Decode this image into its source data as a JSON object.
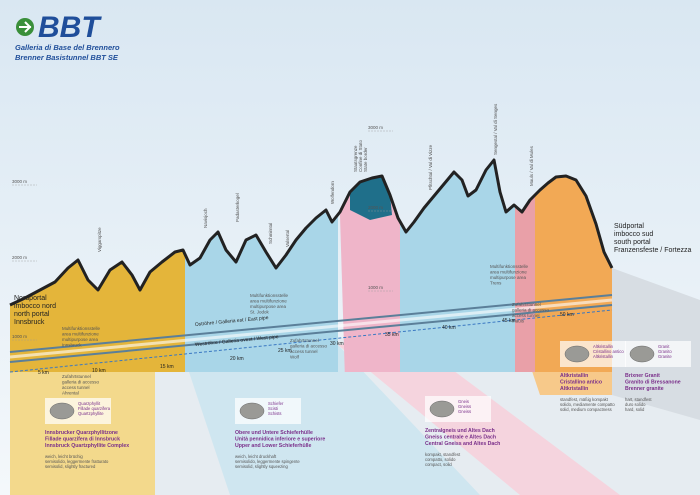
{
  "header": {
    "logo": "BBT",
    "lines": [
      "Galleria di Base del Brennero",
      "Brenner Basistunnel BBT SE"
    ]
  },
  "elevations": [
    "3000 m",
    "2000 m",
    "1000 m",
    "3000 m",
    "2000 m",
    "1000 m"
  ],
  "portals": {
    "north": [
      "Nordportal",
      "imbocco nord",
      "north portal",
      "Innsbruck"
    ],
    "south": [
      "Südportal",
      "imbocco sud",
      "south portal",
      "Franzensfeste / Fortezza"
    ]
  },
  "peaks": [
    [
      "Viggarspitze"
    ],
    [
      "Navisjoch"
    ],
    [
      "Padasterkogel"
    ],
    [
      "Schmirntal"
    ],
    [
      "Valsertal"
    ],
    [
      "Wolfendorn"
    ],
    [
      "Staatsgrenze",
      "Confine di Stato",
      "State border"
    ],
    [
      "Pfitschtal / Val di Vizze"
    ],
    [
      "Sengestal / Val di Senges"
    ],
    [
      "Mauls / Val di Mules"
    ]
  ],
  "km": [
    "5 km",
    "10 km",
    "15 km",
    "20 km",
    "25 km",
    "30 km",
    "35 km",
    "40 km",
    "45 km",
    "50 km"
  ],
  "tubes": [
    "Oströhre / Galleria est / East pipe",
    "Weströhre / Galleria ovest / West pipe"
  ],
  "multipurpose": [
    [
      "Multifunktionsstelle",
      "area multifunzione",
      "multipurpose area",
      "Innsbruck"
    ],
    [
      "Multifunktionsstelle",
      "area multifunzione",
      "multipurpose area",
      "St. Jodok"
    ],
    [
      "Multifunktionsstelle",
      "area multifunzione",
      "multipurpose area",
      "Trens"
    ]
  ],
  "access": [
    [
      "Zufahrtstunnel",
      "galleria di accesso",
      "access tunnel",
      "Ahrental"
    ],
    [
      "Zufahrtstunnel",
      "galleria di accesso",
      "access tunnel",
      "Wolf"
    ],
    [
      "Zufahrtstunnel",
      "galleria di accesso",
      "access tunnel",
      "Mauls"
    ]
  ],
  "rocks": [
    {
      "tags": [
        "Quarzphyllit",
        "Fillade quarzifera",
        "Quartzphyllite"
      ],
      "name": [
        "Innsbrucker Quarzphyllitzone",
        "Fillade quarzifera di Innsbruck",
        "Innsbruck Quartzphyllite Complex"
      ],
      "props": [
        "weich, leicht brüchig",
        "semisolido, leggermente fratturato",
        "semisolid, slightly fractured"
      ]
    },
    {
      "tags": [
        "Schiefer",
        "Scisti",
        "Schists"
      ],
      "name": [
        "Obere und Untere Schieferhülle",
        "Unità pennidica inferiore e superiore",
        "Upper and Lower Schieferhülle"
      ],
      "props": [
        "weich, leicht druckhaft",
        "semisolido, leggermente spingente",
        "semisolid, slightly squeezing"
      ]
    },
    {
      "tags": [
        "Gneis",
        "Gneiss",
        "Gneiss"
      ],
      "name": [
        "Zentralgneis und Altes Dach",
        "Gneiss centrale e Altes Dach",
        "Central Gneiss and Altes Dach"
      ],
      "props": [
        "kompakt, standfest",
        "compatto, solido",
        "compact, solid"
      ]
    },
    {
      "tags": [
        "Altkristallin",
        "Cristallino antico",
        "Altkristallin"
      ],
      "name": [
        "Altkristallin",
        "Cristallino antico",
        "Altkristallin"
      ],
      "props": [
        "standfest, mäßig kompakt",
        "solido, mediamente compatto",
        "solid, medium compactness"
      ]
    },
    {
      "tags": [
        "Granit",
        "Granito",
        "Granite"
      ],
      "name": [
        "Brixner Granit",
        "Granito di Bressanone",
        "Brenner granite"
      ],
      "props": [
        "hart, standfest",
        "duro solido",
        "hard, solid"
      ]
    }
  ]
}
